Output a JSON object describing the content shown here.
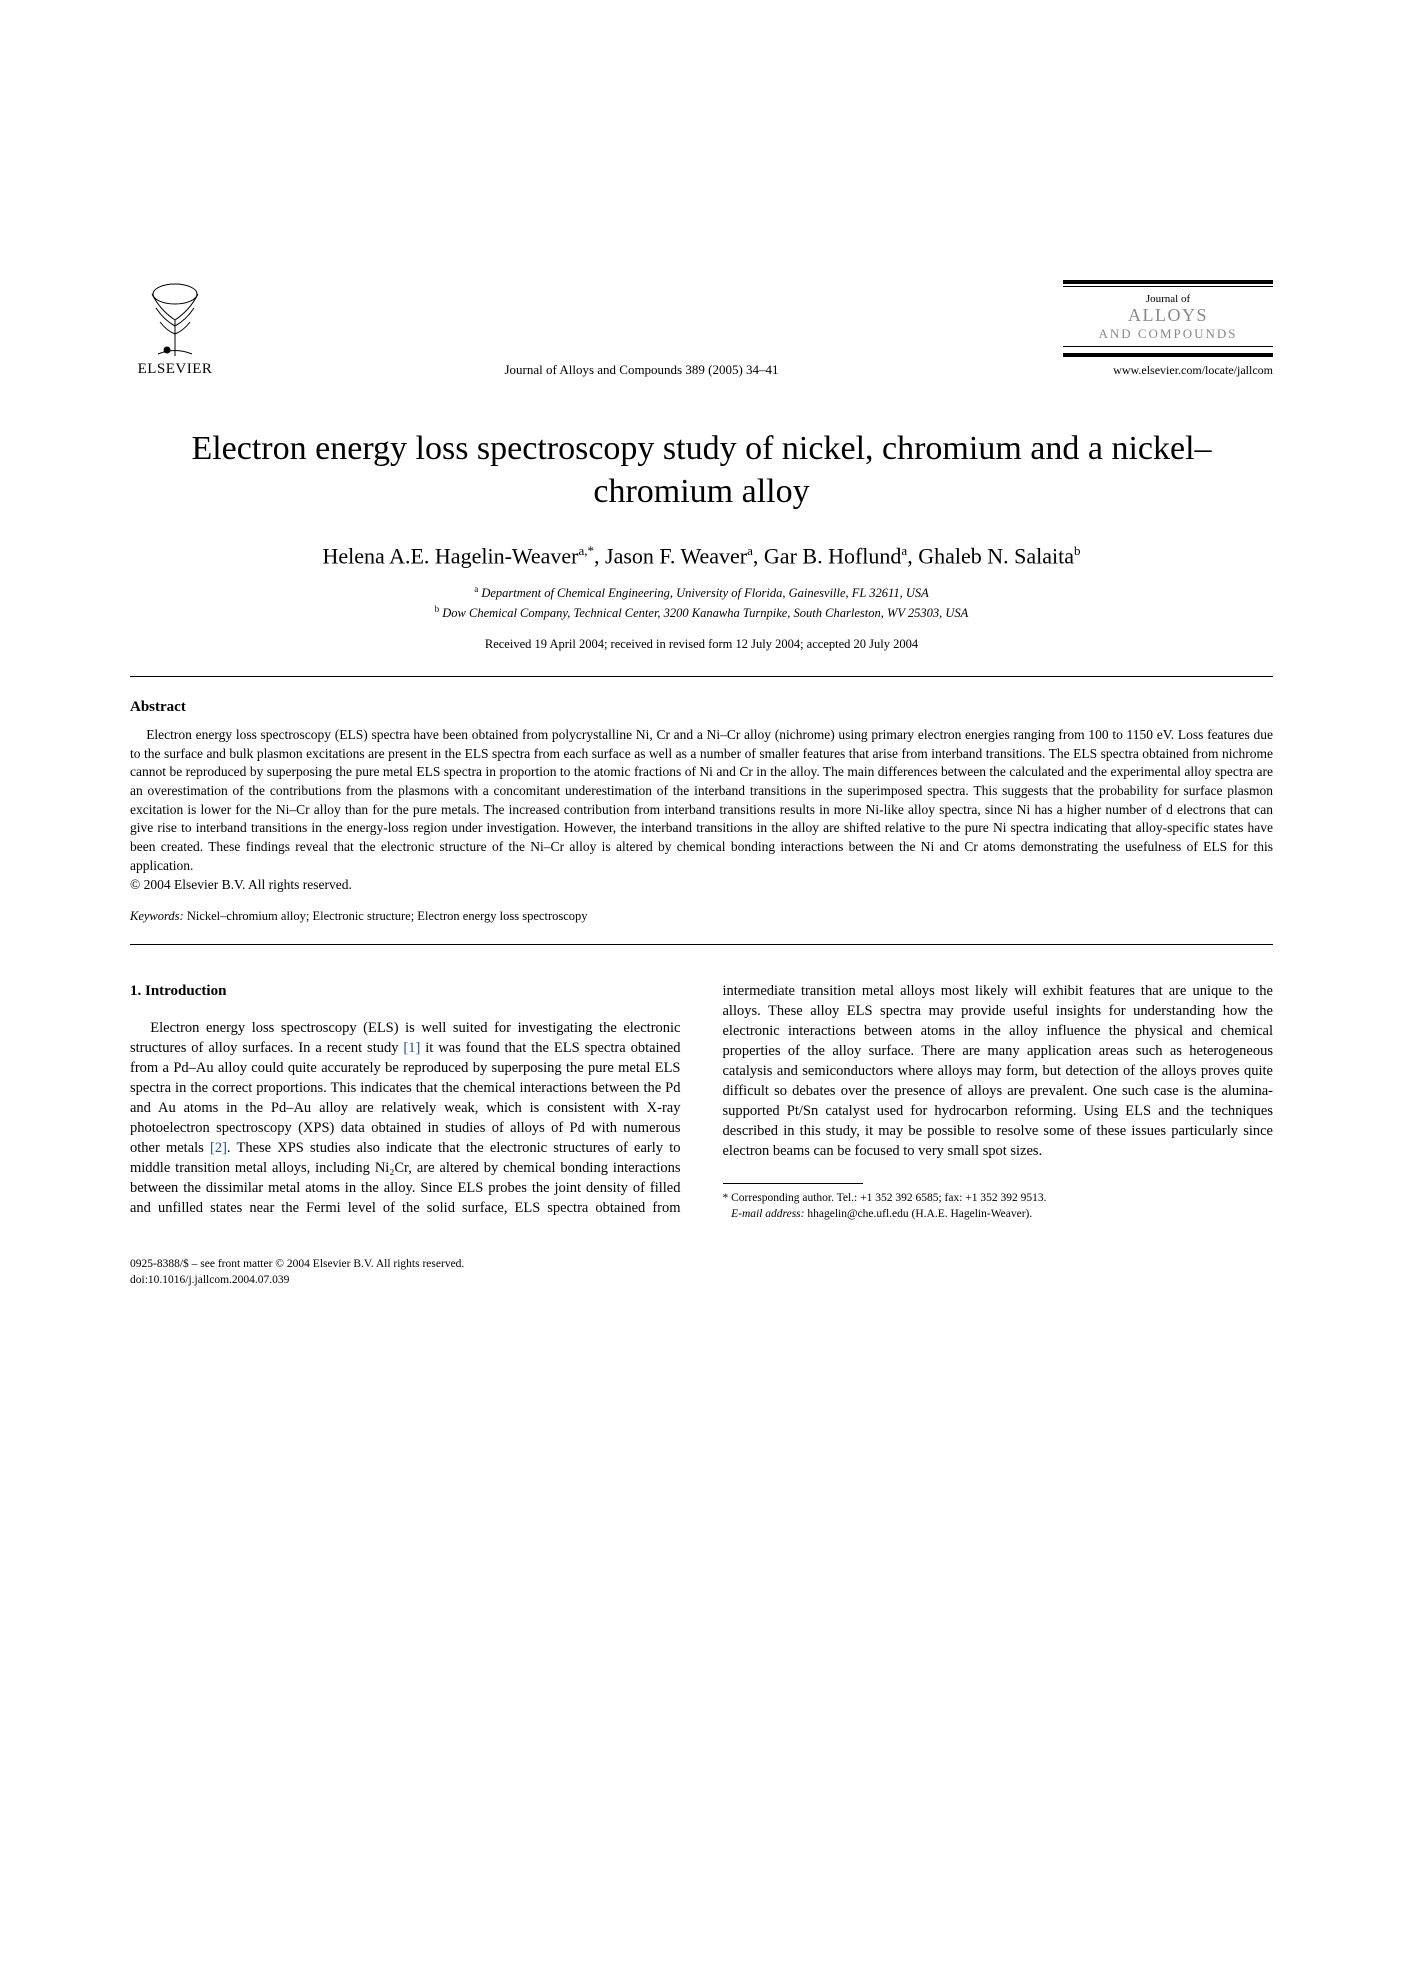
{
  "publisher": {
    "name": "ELSEVIER"
  },
  "journal_ref": "Journal of Alloys and Compounds 389 (2005) 34–41",
  "journal_logo": {
    "line1": "Journal of",
    "line2": "ALLOYS",
    "line3": "AND COMPOUNDS"
  },
  "journal_url": "www.elsevier.com/locate/jallcom",
  "title": "Electron energy loss spectroscopy study of nickel, chromium and a nickel–chromium alloy",
  "authors_html": "Helena A.E. Hagelin-Weaver<sup>a,*</sup>, Jason F. Weaver<sup>a</sup>, Gar B. Hoflund<sup>a</sup>, Ghaleb N. Salaita<sup>b</sup>",
  "affiliations": {
    "a": "Department of Chemical Engineering, University of Florida, Gainesville, FL 32611, USA",
    "b": "Dow Chemical Company, Technical Center, 3200 Kanawha Turnpike, South Charleston, WV 25303, USA"
  },
  "dates": "Received 19 April 2004; received in revised form 12 July 2004; accepted 20 July 2004",
  "abstract": {
    "heading": "Abstract",
    "text": "Electron energy loss spectroscopy (ELS) spectra have been obtained from polycrystalline Ni, Cr and a Ni–Cr alloy (nichrome) using primary electron energies ranging from 100 to 1150 eV. Loss features due to the surface and bulk plasmon excitations are present in the ELS spectra from each surface as well as a number of smaller features that arise from interband transitions. The ELS spectra obtained from nichrome cannot be reproduced by superposing the pure metal ELS spectra in proportion to the atomic fractions of Ni and Cr in the alloy. The main differences between the calculated and the experimental alloy spectra are an overestimation of the contributions from the plasmons with a concomitant underestimation of the interband transitions in the superimposed spectra. This suggests that the probability for surface plasmon excitation is lower for the Ni–Cr alloy than for the pure metals. The increased contribution from interband transitions results in more Ni-like alloy spectra, since Ni has a higher number of d electrons that can give rise to interband transitions in the energy-loss region under investigation. However, the interband transitions in the alloy are shifted relative to the pure Ni spectra indicating that alloy-specific states have been created. These findings reveal that the electronic structure of the Ni–Cr alloy is altered by chemical bonding interactions between the Ni and Cr atoms demonstrating the usefulness of ELS for this application.",
    "copyright": "© 2004 Elsevier B.V. All rights reserved."
  },
  "keywords": {
    "label": "Keywords:",
    "text": " Nickel–chromium alloy; Electronic structure; Electron energy loss spectroscopy"
  },
  "section1": {
    "heading": "1.  Introduction",
    "para": "Electron energy loss spectroscopy (ELS) is well suited for investigating the electronic structures of alloy surfaces. In a recent study [1] it was found that the ELS spectra obtained from a Pd–Au alloy could quite accurately be reproduced by superposing the pure metal ELS spectra in the correct proportions. This indicates that the chemical interactions between the Pd and Au atoms in the Pd–Au alloy are relatively weak, which is consistent with X-ray photoelectron spectroscopy (XPS) data obtained in studies of alloys of Pd with numerous other metals [2]. These XPS studies also indicate that the electronic structures of early to middle transition metal alloys, including Ni₂Cr, are altered by chemical bonding interactions between the dissimilar metal atoms in the alloy. Since ELS probes the joint density of filled and unfilled states near the Fermi level of the solid surface, ELS spectra obtained from intermediate transition metal alloys most likely will exhibit features that are unique to the alloys. These alloy ELS spectra may provide useful insights for understanding how the electronic interactions between atoms in the alloy influence the physical and chemical properties of the alloy surface. There are many application areas such as heterogeneous catalysis and semiconductors where alloys may form, but detection of the alloys proves quite difficult so debates over the presence of alloys are prevalent. One such case is the alumina-supported Pt/Sn catalyst used for hydrocarbon reforming. Using ELS and the techniques described in this study, it may be possible to resolve some of these issues particularly since electron beams can be focused to very small spot sizes."
  },
  "footnotes": {
    "corr": "Corresponding author. Tel.: +1 352 392 6585; fax: +1 352 392 9513.",
    "email_label": "E-mail address:",
    "email": " hhagelin@che.ufl.edu (H.A.E. Hagelin-Weaver)."
  },
  "bottom": {
    "line1": "0925-8388/$ – see front matter © 2004 Elsevier B.V. All rights reserved.",
    "line2": "doi:10.1016/j.jallcom.2004.07.039"
  },
  "colors": {
    "text": "#000000",
    "background": "#ffffff",
    "citation": "#1a4fa0",
    "logo_gray": "#888888"
  }
}
